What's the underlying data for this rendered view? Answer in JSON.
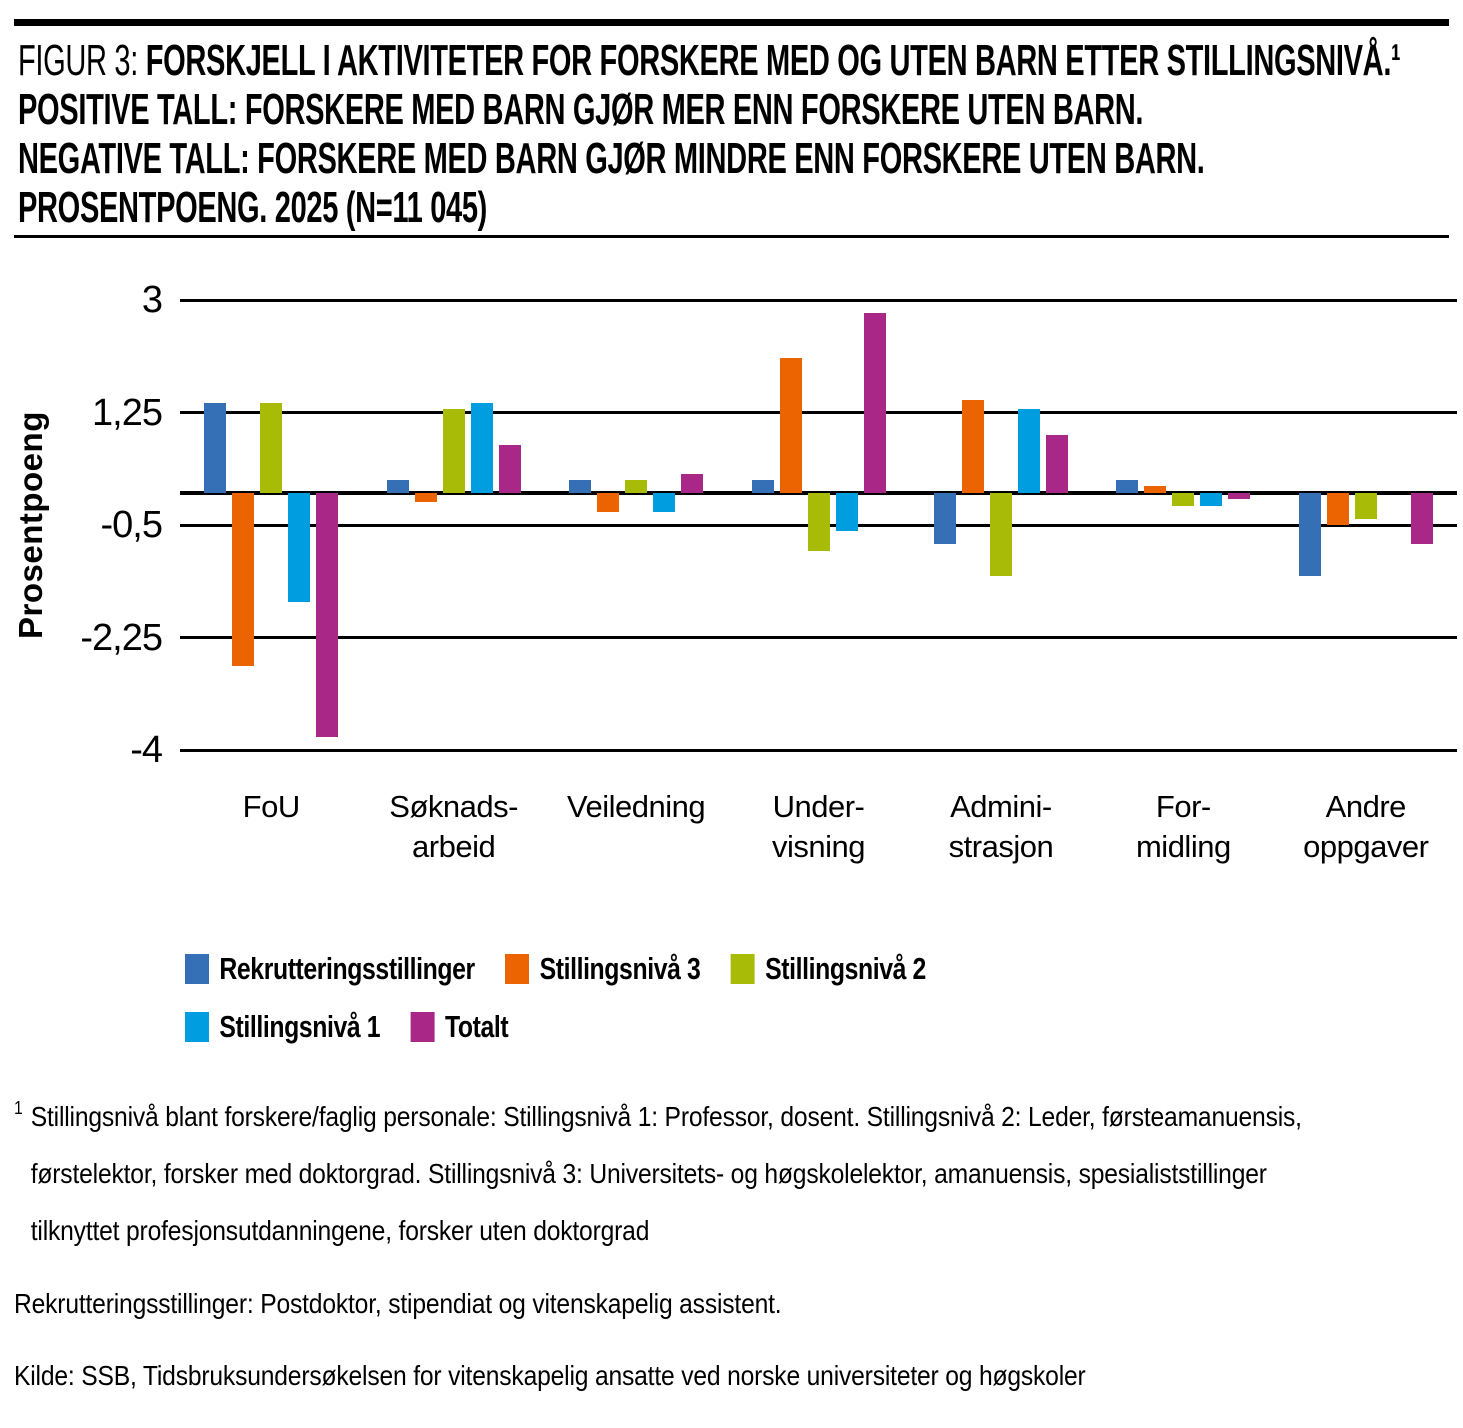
{
  "header": {
    "figure_label": "FIGUR 3:",
    "title_lines": [
      "FORSKJELL I AKTIVITETER FOR FORSKERE MED OG UTEN BARN ETTER STILLINGSNIVÅ.¹",
      "POSITIVE TALL: FORSKERE MED BARN GJØR MER ENN FORSKERE UTEN BARN.",
      "NEGATIVE TALL: FORSKERE MED BARN GJØR MINDRE ENN FORSKERE UTEN BARN.",
      "PROSENTPOENG. 2025 (N=11 045)"
    ]
  },
  "chart_data": {
    "type": "bar",
    "title": "Forskjell i aktiviteter for forskere med og uten barn etter stillingsnivå. Prosentpoeng. 2025 (N=11 045)",
    "ylabel": "Prosentpoeng",
    "ylim": [
      -4,
      3
    ],
    "yticks": [
      3,
      1.25,
      -0.5,
      -2.25,
      -4
    ],
    "ytick_labels": [
      "3",
      "1,25",
      "-0,5",
      "-2,25",
      "-4"
    ],
    "grid": true,
    "grid_color": "#000000",
    "legend_position": "bottom",
    "categories": [
      "FoU",
      "Søknadsarbeid",
      "Veiledning",
      "Undervisning",
      "Administrasjon",
      "Formidling",
      "Andre oppgaver"
    ],
    "category_labels": [
      [
        "FoU"
      ],
      [
        "Søknads-",
        "arbeid"
      ],
      [
        "Veiledning"
      ],
      [
        "Under-",
        "visning"
      ],
      [
        "Admini-",
        "strasjon"
      ],
      [
        "For-",
        "midling"
      ],
      [
        "Andre",
        "oppgaver"
      ]
    ],
    "series": [
      {
        "name": "Rekrutteringsstillinger",
        "color": "#3570B6",
        "values": [
          1.4,
          0.2,
          0.2,
          0.2,
          -0.8,
          0.2,
          -1.3
        ]
      },
      {
        "name": "Stillingsnivå 3",
        "color": "#EC6302",
        "values": [
          -2.7,
          -0.15,
          -0.3,
          2.1,
          1.45,
          0.1,
          -0.5
        ]
      },
      {
        "name": "Stillingsnivå 2",
        "color": "#A7BB07",
        "values": [
          1.4,
          1.3,
          0.2,
          -0.9,
          -1.3,
          -0.2,
          -0.4
        ]
      },
      {
        "name": "Stillingsnivå 1",
        "color": "#009EE0",
        "values": [
          -1.7,
          1.4,
          -0.3,
          -0.6,
          1.3,
          -0.2,
          0
        ]
      },
      {
        "name": "Totalt",
        "color": "#A92887",
        "values": [
          -3.8,
          0.75,
          0.3,
          2.8,
          0.9,
          -0.1,
          -0.8
        ]
      }
    ],
    "legend_rows": [
      [
        "Rekrutteringsstillinger",
        "Stillingsnivå 3",
        "Stillingsnivå 2"
      ],
      [
        "Stillingsnivå 1",
        "Totalt"
      ]
    ]
  },
  "footnote": {
    "marker": "1",
    "lines": [
      "Stillingsnivå blant forskere/faglig personale: Stillingsnivå 1: Professor, dosent. Stillingsnivå 2: Leder, førsteamanuensis,",
      "førstelektor, forsker med doktorgrad. Stillingsnivå 3: Universitets- og høgskolelektor, amanuensis, spesialiststillinger",
      "tilknyttet profesjonsutdanningene, forsker uten doktorgrad"
    ]
  },
  "notes": {
    "rekruttering": "Rekrutteringsstillinger: Postdoktor, stipendiat og vitenskapelig assistent.",
    "kilde": "Kilde: SSB, Tidsbruksundersøkelsen for vitenskapelig ansatte ved norske universiteter og høgskoler"
  }
}
